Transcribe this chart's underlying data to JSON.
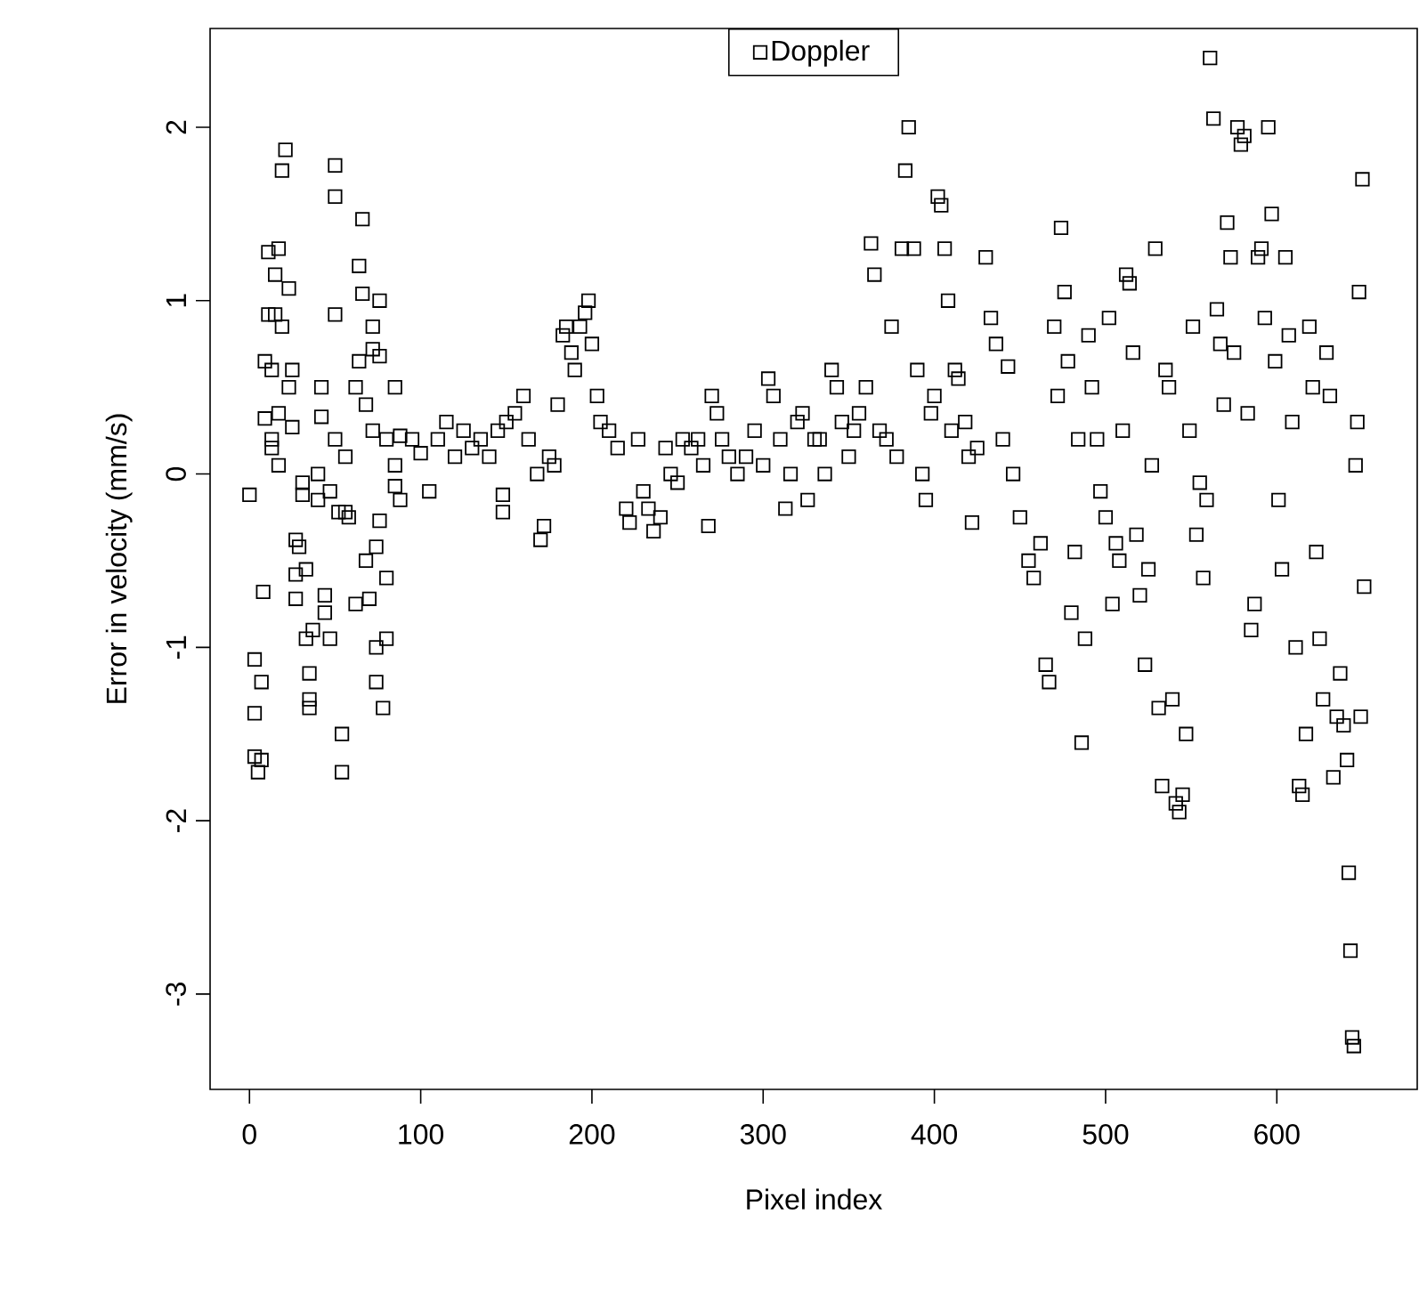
{
  "chart_data": {
    "type": "scatter",
    "xlabel": "Pixel index",
    "ylabel": "Error in velocity (mm/s)",
    "xlim": [
      -23,
      682
    ],
    "ylim": [
      -3.55,
      2.57
    ],
    "xticks": [
      0,
      100,
      200,
      300,
      400,
      500,
      600
    ],
    "yticks": [
      -3,
      -2,
      -1,
      0,
      1,
      2
    ],
    "marker": "square",
    "legend": "top",
    "series": [
      {
        "name": "Doppler",
        "color": "#000000",
        "x": [
          0,
          3,
          3,
          3,
          5,
          7,
          7,
          8,
          9,
          9,
          11,
          11,
          13,
          13,
          13,
          15,
          15,
          17,
          17,
          17,
          19,
          19,
          21,
          23,
          23,
          25,
          25,
          27,
          27,
          27,
          29,
          31,
          31,
          33,
          33,
          35,
          35,
          35,
          37,
          40,
          40,
          42,
          42,
          44,
          44,
          47,
          47,
          50,
          50,
          50,
          50,
          52,
          54,
          54,
          56,
          56,
          58,
          62,
          62,
          64,
          64,
          66,
          66,
          68,
          68,
          70,
          72,
          72,
          72,
          74,
          74,
          74,
          76,
          76,
          76,
          78,
          80,
          80,
          80,
          85,
          85,
          85,
          88,
          88,
          95,
          100,
          105,
          110,
          115,
          120,
          125,
          130,
          135,
          140,
          145,
          148,
          148,
          150,
          155,
          160,
          163,
          168,
          170,
          172,
          175,
          178,
          180,
          183,
          185,
          188,
          190,
          193,
          196,
          198,
          200,
          203,
          205,
          210,
          215,
          220,
          222,
          227,
          230,
          233,
          236,
          240,
          243,
          246,
          250,
          253,
          258,
          262,
          265,
          268,
          270,
          273,
          276,
          280,
          285,
          290,
          295,
          300,
          303,
          306,
          310,
          313,
          316,
          320,
          323,
          326,
          330,
          333,
          336,
          340,
          343,
          346,
          350,
          353,
          356,
          360,
          363,
          365,
          368,
          372,
          375,
          378,
          381,
          383,
          385,
          388,
          390,
          393,
          395,
          398,
          400,
          402,
          404,
          406,
          408,
          410,
          412,
          414,
          418,
          420,
          422,
          425,
          430,
          433,
          436,
          440,
          443,
          446,
          450,
          455,
          458,
          462,
          465,
          467,
          470,
          472,
          474,
          476,
          478,
          480,
          482,
          484,
          486,
          488,
          490,
          492,
          495,
          497,
          500,
          502,
          504,
          506,
          508,
          510,
          512,
          514,
          516,
          518,
          520,
          523,
          525,
          527,
          529,
          531,
          533,
          535,
          537,
          539,
          541,
          543,
          545,
          547,
          549,
          551,
          553,
          555,
          557,
          559,
          561,
          563,
          565,
          567,
          569,
          571,
          573,
          575,
          577,
          579,
          581,
          583,
          585,
          587,
          589,
          591,
          593,
          595,
          597,
          599,
          601,
          603,
          605,
          607,
          609,
          611,
          613,
          615,
          617,
          619,
          621,
          623,
          625,
          627,
          629,
          631,
          633,
          635,
          637,
          639,
          641,
          642,
          643,
          644,
          645,
          646,
          647,
          648,
          649,
          650,
          651
        ],
        "values": [
          -0.12,
          -1.07,
          -1.38,
          -1.63,
          -1.72,
          -1.65,
          -1.2,
          -0.68,
          0.32,
          0.65,
          1.28,
          0.92,
          0.2,
          0.6,
          0.15,
          1.15,
          0.92,
          0.35,
          0.05,
          1.3,
          0.85,
          1.75,
          1.87,
          1.07,
          0.5,
          0.6,
          0.27,
          -0.38,
          -0.58,
          -0.72,
          -0.42,
          -0.12,
          -0.05,
          -0.55,
          -0.95,
          -1.15,
          -1.35,
          -1.3,
          -0.9,
          -0.15,
          0.0,
          0.5,
          0.33,
          -0.7,
          -0.8,
          -0.95,
          -0.1,
          1.6,
          1.78,
          0.92,
          0.2,
          -0.22,
          -1.5,
          -1.72,
          -0.22,
          0.1,
          -0.25,
          -0.75,
          0.5,
          0.65,
          1.2,
          1.47,
          1.04,
          0.4,
          -0.5,
          -0.72,
          0.85,
          0.72,
          0.25,
          -0.42,
          -1.0,
          -1.2,
          0.68,
          1.0,
          -0.27,
          -1.35,
          -0.6,
          -0.95,
          0.2,
          0.5,
          -0.07,
          0.05,
          -0.15,
          0.22,
          0.2,
          0.12,
          -0.1,
          0.2,
          0.3,
          0.1,
          0.25,
          0.15,
          0.2,
          0.1,
          0.25,
          -0.12,
          -0.22,
          0.3,
          0.35,
          0.45,
          0.2,
          0.0,
          -0.38,
          -0.3,
          0.1,
          0.05,
          0.4,
          0.8,
          0.85,
          0.7,
          0.6,
          0.85,
          0.93,
          1.0,
          0.75,
          0.45,
          0.3,
          0.25,
          0.15,
          -0.2,
          -0.28,
          0.2,
          -0.1,
          -0.2,
          -0.33,
          -0.25,
          0.15,
          0.0,
          -0.05,
          0.2,
          0.15,
          0.2,
          0.05,
          -0.3,
          0.45,
          0.35,
          0.2,
          0.1,
          0.0,
          0.1,
          0.25,
          0.05,
          0.55,
          0.45,
          0.2,
          -0.2,
          0.0,
          0.3,
          0.35,
          -0.15,
          0.2,
          0.2,
          0.0,
          0.6,
          0.5,
          0.3,
          0.1,
          0.25,
          0.35,
          0.5,
          1.33,
          1.15,
          0.25,
          0.2,
          0.85,
          0.1,
          1.3,
          1.75,
          2.0,
          1.3,
          0.6,
          0.0,
          -0.15,
          0.35,
          0.45,
          1.6,
          1.55,
          1.3,
          1.0,
          0.25,
          0.6,
          0.55,
          0.3,
          0.1,
          -0.28,
          0.15,
          1.25,
          0.9,
          0.75,
          0.2,
          0.62,
          0.0,
          -0.25,
          -0.5,
          -0.6,
          -0.4,
          -1.1,
          -1.2,
          0.85,
          0.45,
          1.42,
          1.05,
          0.65,
          -0.8,
          -0.45,
          0.2,
          -1.55,
          -0.95,
          0.8,
          0.5,
          0.2,
          -0.1,
          -0.25,
          0.9,
          -0.75,
          -0.4,
          -0.5,
          0.25,
          1.15,
          1.1,
          0.7,
          -0.35,
          -0.7,
          -1.1,
          -0.55,
          0.05,
          1.3,
          -1.35,
          -1.8,
          0.6,
          0.5,
          -1.3,
          -1.9,
          -1.95,
          -1.85,
          -1.5,
          0.25,
          0.85,
          -0.35,
          -0.05,
          -0.6,
          -0.15,
          2.4,
          2.05,
          0.95,
          0.75,
          0.4,
          1.45,
          1.25,
          0.7,
          2.0,
          1.9,
          1.95,
          0.35,
          -0.9,
          -0.75,
          1.25,
          1.3,
          0.9,
          2.0,
          1.5,
          0.65,
          -0.15,
          -0.55,
          1.25,
          0.8,
          0.3,
          -1.0,
          -1.8,
          -1.85,
          -1.5,
          0.85,
          0.5,
          -0.45,
          -0.95,
          -1.3,
          0.7,
          0.45,
          -1.75,
          -1.4,
          -1.15,
          -1.45,
          -1.65,
          -2.3,
          -2.75,
          -3.25,
          -3.3,
          0.05,
          0.3,
          1.05,
          -1.4,
          1.7,
          -0.65
        ]
      }
    ]
  }
}
